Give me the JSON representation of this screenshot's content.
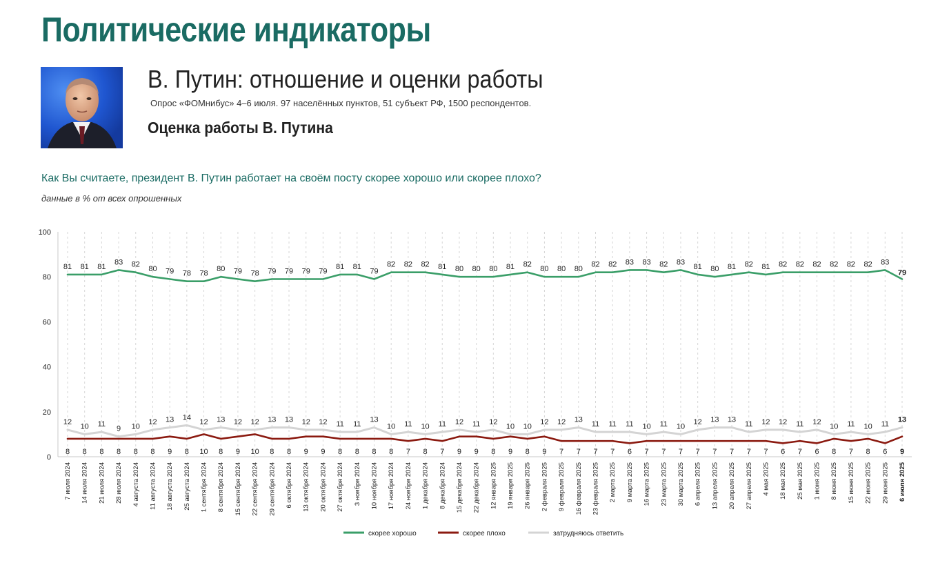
{
  "header": {
    "main_title": "Политические индикаторы",
    "subtitle": "В. Путин: отношение и оценки работы",
    "survey_note": "Опрос «ФОМнибус» 4–6 июля. 97 населённых пунктов, 51 субъект РФ, 1500 респондентов.",
    "section_title": "Оценка работы В. Путина"
  },
  "question": "Как Вы считаете, президент В. Путин работает на своём посту скорее хорошо или скорее плохо?",
  "note": "данные в % от всех опрошенных",
  "colors": {
    "accent": "#1a6b63",
    "good": "#3a9e68",
    "bad": "#8b1a10",
    "hard": "#d4d4d4"
  },
  "chart_data": {
    "type": "line",
    "ylim": [
      0,
      100
    ],
    "yticks": [
      0,
      20,
      40,
      60,
      80,
      100
    ],
    "categories": [
      "7 июля 2024",
      "14 июля 2024",
      "21 июля 2024",
      "28 июля 2024",
      "4 августа 2024",
      "11 августа 2024",
      "18 августа 2024",
      "25 августа 2024",
      "1 сентября 2024",
      "8 сентября 2024",
      "15 сентября 2024",
      "22 сентября 2024",
      "29 сентября 2024",
      "6 октября 2024",
      "13 октября 2024",
      "20 октября 2024",
      "27 октября 2024",
      "3 ноября 2024",
      "10 ноября 2024",
      "17 ноября 2024",
      "24 ноября 2024",
      "1 декабря 2024",
      "8 декабря 2024",
      "15 декабря 2024",
      "22 декабря 2024",
      "12 января 2025",
      "19 января 2025",
      "26 января 2025",
      "2 февраля 2025",
      "9 февраля 2025",
      "16 февраля 2025",
      "23 февраля 2025",
      "2 марта 2025",
      "9 марта 2025",
      "16 марта 2025",
      "23 марта 2025",
      "30 марта 2025",
      "6 апреля 2025",
      "13 апреля 2025",
      "20 апреля 2025",
      "27 апреля 2025",
      "4 мая 2025",
      "18 мая 2025",
      "25 мая 2025",
      "1 июня 2025",
      "8 июня 2025",
      "15 июня 2025",
      "22 июня 2025",
      "29 июня 2025",
      "6 июля 2025"
    ],
    "series": [
      {
        "name": "скорее хорошо",
        "values": [
          81,
          81,
          81,
          83,
          82,
          80,
          79,
          78,
          78,
          80,
          79,
          78,
          79,
          79,
          79,
          79,
          81,
          81,
          79,
          82,
          82,
          82,
          81,
          80,
          80,
          80,
          81,
          82,
          80,
          80,
          80,
          82,
          82,
          83,
          83,
          82,
          83,
          81,
          80,
          81,
          82,
          81,
          82,
          82,
          82,
          82,
          82,
          82,
          83,
          79
        ]
      },
      {
        "name": "скорее плохо",
        "values": [
          8,
          8,
          8,
          8,
          8,
          8,
          9,
          8,
          10,
          8,
          9,
          10,
          8,
          8,
          9,
          9,
          8,
          8,
          8,
          8,
          7,
          8,
          7,
          9,
          9,
          8,
          9,
          8,
          9,
          7,
          7,
          7,
          7,
          6,
          7,
          7,
          7,
          7,
          7,
          7,
          7,
          7,
          6,
          7,
          6,
          8,
          7,
          8,
          6,
          9
        ]
      },
      {
        "name": "затрудняюсь ответить",
        "values": [
          12,
          10,
          11,
          9,
          10,
          12,
          13,
          14,
          12,
          13,
          12,
          12,
          13,
          13,
          12,
          12,
          11,
          11,
          13,
          10,
          11,
          10,
          11,
          12,
          11,
          12,
          10,
          10,
          12,
          12,
          13,
          11,
          11,
          11,
          10,
          11,
          10,
          12,
          13,
          13,
          11,
          12,
          12,
          11,
          12,
          10,
          11,
          10,
          11,
          13
        ]
      }
    ],
    "legend": [
      "скорее хорошо",
      "скорее плохо",
      "затрудняюсь ответить"
    ],
    "legend_position": "bottom"
  }
}
